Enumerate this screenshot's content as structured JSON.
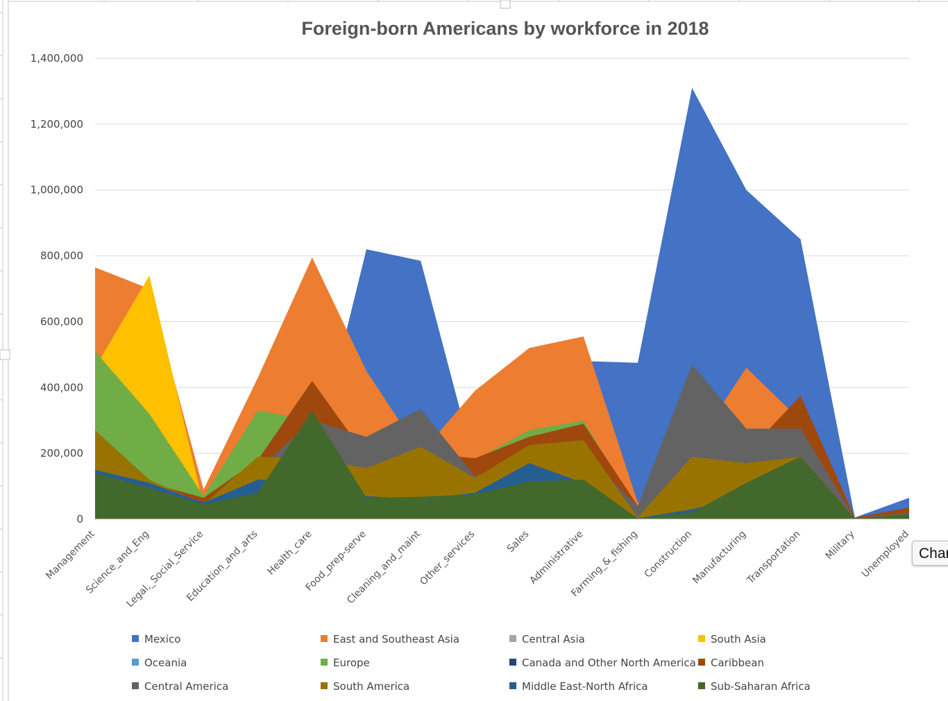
{
  "chart_data": {
    "type": "area",
    "title": "Foreign-born Americans by workforce in 2018",
    "xlabel": "",
    "ylabel": "",
    "ylim": [
      0,
      1400000
    ],
    "yticks": [
      "0",
      "200,000",
      "400,000",
      "600,000",
      "800,000",
      "1,000,000",
      "1,200,000",
      "1,400,000"
    ],
    "grid": true,
    "legend_position": "bottom",
    "categories": [
      "Management",
      "Science_and_Eng",
      "Legal,_Social_Service",
      "Education_and_arts",
      "Health_care",
      "Food_prep-serve",
      "Cleaning_and_maint",
      "Other_services",
      "Sales",
      "Administrative",
      "Farming_&_fishing",
      "Construction",
      "Manufacturing",
      "Transportation",
      "Military",
      "Unemployed"
    ],
    "series": [
      {
        "name": "Mexico",
        "color": "#4472C4",
        "values": [
          150000,
          110000,
          60000,
          120000,
          150000,
          820000,
          785000,
          160000,
          480000,
          480000,
          475000,
          1310000,
          1000000,
          850000,
          5000,
          65000
        ]
      },
      {
        "name": "East and Southeast Asia",
        "color": "#ED7D31",
        "values": [
          765000,
          700000,
          90000,
          430000,
          795000,
          450000,
          200000,
          390000,
          520000,
          555000,
          50000,
          210000,
          460000,
          300000,
          5000,
          25000
        ]
      },
      {
        "name": "Central Asia",
        "color": "#A5A5A5",
        "values": [
          5000,
          5000,
          1000,
          5000,
          10000,
          5000,
          5000,
          5000,
          5000,
          5000,
          1000,
          5000,
          5000,
          5000,
          500,
          1000
        ]
      },
      {
        "name": "South Asia",
        "color": "#FFC000",
        "values": [
          460000,
          740000,
          40000,
          150000,
          200000,
          150000,
          80000,
          100000,
          200000,
          150000,
          10000,
          60000,
          150000,
          150000,
          3000,
          20000
        ]
      },
      {
        "name": "Oceania",
        "color": "#5B9BD5",
        "values": [
          10000,
          10000,
          2000,
          8000,
          10000,
          8000,
          6000,
          6000,
          8000,
          8000,
          1000,
          5000,
          6000,
          6000,
          500,
          1000
        ]
      },
      {
        "name": "Europe",
        "color": "#70AD47",
        "values": [
          510000,
          320000,
          70000,
          330000,
          300000,
          150000,
          120000,
          180000,
          270000,
          300000,
          20000,
          180000,
          200000,
          150000,
          4000,
          20000
        ]
      },
      {
        "name": "Canada and Other North America",
        "color": "#264478",
        "values": [
          90000,
          50000,
          15000,
          60000,
          60000,
          20000,
          10000,
          20000,
          50000,
          50000,
          5000,
          20000,
          30000,
          20000,
          2000,
          5000
        ]
      },
      {
        "name": "Caribbean",
        "color": "#9E480E",
        "values": [
          250000,
          110000,
          65000,
          180000,
          420000,
          190000,
          200000,
          185000,
          250000,
          290000,
          40000,
          180000,
          200000,
          375000,
          5000,
          35000
        ]
      },
      {
        "name": "Central America",
        "color": "#636363",
        "values": [
          180000,
          100000,
          50000,
          150000,
          300000,
          250000,
          335000,
          130000,
          175000,
          200000,
          40000,
          470000,
          275000,
          275000,
          3000,
          20000
        ]
      },
      {
        "name": "South America",
        "color": "#997300",
        "values": [
          270000,
          120000,
          45000,
          190000,
          185000,
          155000,
          220000,
          125000,
          225000,
          240000,
          5000,
          190000,
          170000,
          190000,
          3000,
          15000
        ]
      },
      {
        "name": "Middle East-North Africa",
        "color": "#255E91",
        "values": [
          150000,
          110000,
          50000,
          120000,
          110000,
          70000,
          60000,
          80000,
          170000,
          110000,
          3000,
          30000,
          70000,
          60000,
          2000,
          10000
        ]
      },
      {
        "name": "Sub-Saharan Africa",
        "color": "#43682B",
        "values": [
          140000,
          95000,
          45000,
          80000,
          330000,
          65000,
          68000,
          75000,
          115000,
          120000,
          2000,
          20000,
          110000,
          190000,
          2000,
          15000
        ]
      }
    ]
  },
  "tooltip": {
    "label": "Char"
  }
}
